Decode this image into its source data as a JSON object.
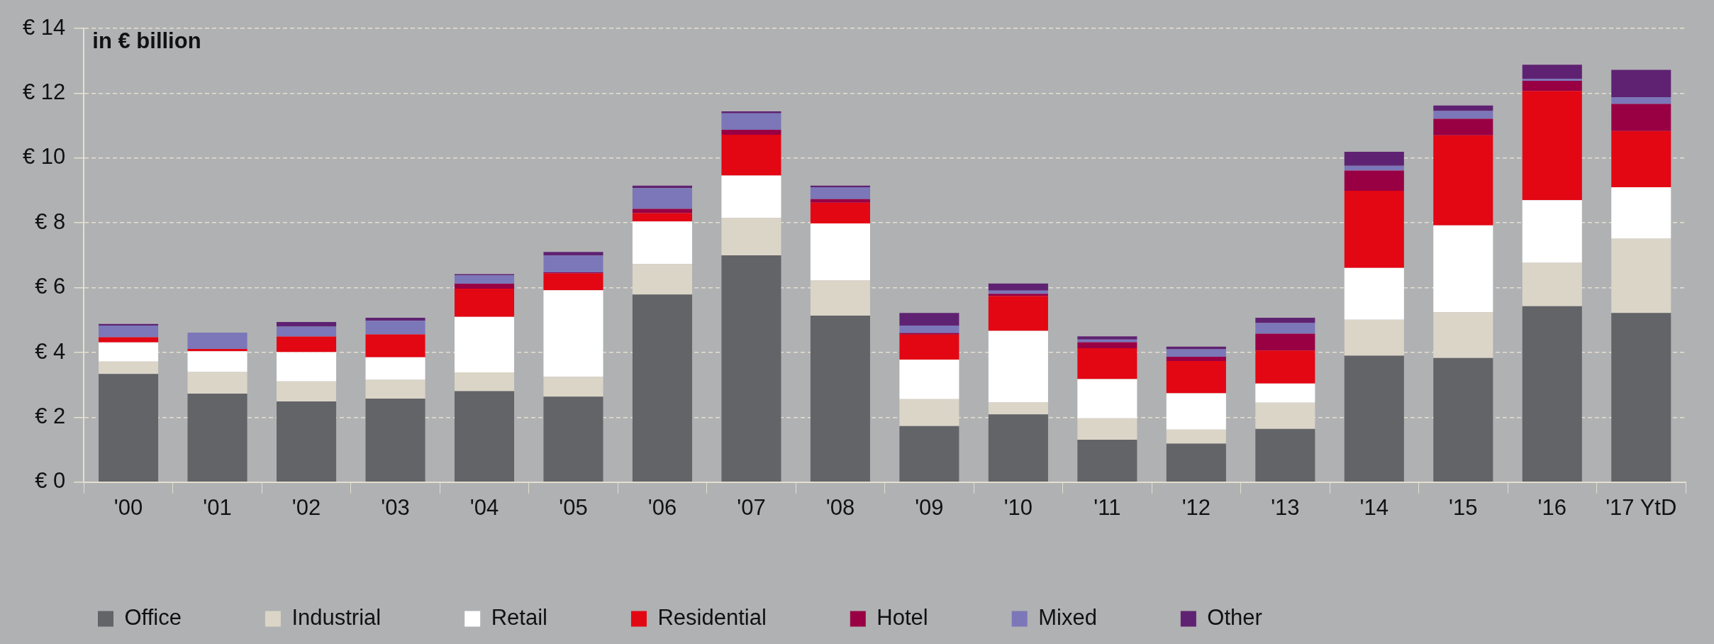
{
  "chart_data": {
    "type": "bar",
    "stacked": true,
    "ylabel": "in € billion",
    "categories": [
      "'00",
      "'01",
      "'02",
      "'03",
      "'04",
      "'05",
      "'06",
      "'07",
      "'08",
      "'09",
      "'10",
      "'11",
      "'12",
      "'13",
      "'14",
      "'15",
      "'16",
      "'17 YtD"
    ],
    "series": [
      {
        "name": "Office",
        "color": "#636468",
        "values": [
          3.34,
          2.73,
          2.49,
          2.58,
          2.81,
          2.64,
          5.79,
          7.0,
          5.14,
          1.73,
          2.09,
          1.31,
          1.19,
          1.64,
          3.9,
          3.83,
          5.43,
          5.22
        ]
      },
      {
        "name": "Industrial",
        "color": "#dbd5c8",
        "values": [
          0.38,
          0.67,
          0.62,
          0.58,
          0.58,
          0.61,
          0.94,
          1.15,
          1.08,
          0.83,
          0.38,
          0.66,
          0.43,
          0.81,
          1.11,
          1.41,
          1.34,
          2.29
        ]
      },
      {
        "name": "Retail",
        "color": "#ffffff",
        "values": [
          0.59,
          0.64,
          0.9,
          0.69,
          1.71,
          2.67,
          1.31,
          1.31,
          1.76,
          1.22,
          2.2,
          1.21,
          1.12,
          0.59,
          1.6,
          2.68,
          1.93,
          1.59
        ]
      },
      {
        "name": "Residential",
        "color": "#e30613",
        "values": [
          0.16,
          0.07,
          0.48,
          0.71,
          0.87,
          0.52,
          0.26,
          1.26,
          0.64,
          0.77,
          1.07,
          0.95,
          1.0,
          1.02,
          2.38,
          2.78,
          3.37,
          1.73
        ]
      },
      {
        "name": "Hotel",
        "color": "#990044",
        "values": [
          0,
          0,
          0,
          0,
          0.15,
          0.03,
          0.13,
          0.15,
          0.11,
          0.05,
          0.07,
          0.19,
          0.13,
          0.52,
          0.62,
          0.51,
          0.31,
          0.84
        ]
      },
      {
        "name": "Mixed",
        "color": "#7b77b8",
        "values": [
          0.36,
          0.5,
          0.31,
          0.42,
          0.26,
          0.52,
          0.64,
          0.51,
          0.37,
          0.23,
          0.1,
          0.08,
          0.23,
          0.33,
          0.15,
          0.24,
          0.06,
          0.21
        ]
      },
      {
        "name": "Other",
        "color": "#5f2272",
        "values": [
          0.05,
          0,
          0.14,
          0.09,
          0.04,
          0.11,
          0.08,
          0.06,
          0.05,
          0.39,
          0.22,
          0.1,
          0.08,
          0.16,
          0.43,
          0.17,
          0.44,
          0.84
        ]
      }
    ],
    "ylim": [
      0,
      14
    ],
    "yticks": [
      {
        "value": 0,
        "label": "€ 0"
      },
      {
        "value": 2,
        "label": "€ 2"
      },
      {
        "value": 4,
        "label": "€ 4"
      },
      {
        "value": 6,
        "label": "€ 6"
      },
      {
        "value": 8,
        "label": "€ 8"
      },
      {
        "value": 10,
        "label": "€ 10"
      },
      {
        "value": 12,
        "label": "€ 12"
      },
      {
        "value": 14,
        "label": "€ 14"
      }
    ],
    "grid": "y",
    "legend": "bottom"
  }
}
